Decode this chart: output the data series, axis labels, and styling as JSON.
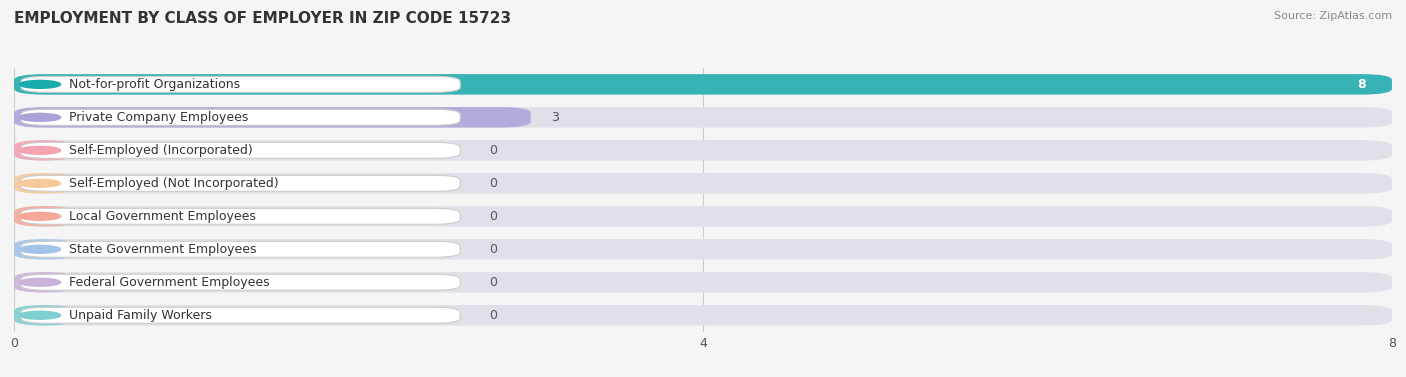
{
  "title": "EMPLOYMENT BY CLASS OF EMPLOYER IN ZIP CODE 15723",
  "source": "Source: ZipAtlas.com",
  "categories": [
    "Not-for-profit Organizations",
    "Private Company Employees",
    "Self-Employed (Incorporated)",
    "Self-Employed (Not Incorporated)",
    "Local Government Employees",
    "State Government Employees",
    "Federal Government Employees",
    "Unpaid Family Workers"
  ],
  "values": [
    8,
    3,
    0,
    0,
    0,
    0,
    0,
    0
  ],
  "bar_colors": [
    "#1aacac",
    "#a9a3d9",
    "#f4a3b0",
    "#f5c999",
    "#f5a899",
    "#a3c4e8",
    "#c9b3d9",
    "#7ecfcf"
  ],
  "xlim": [
    0,
    8
  ],
  "xticks": [
    0,
    4,
    8
  ],
  "background_color": "#f5f5f5",
  "title_fontsize": 11,
  "label_fontsize": 9,
  "value_fontsize": 9
}
